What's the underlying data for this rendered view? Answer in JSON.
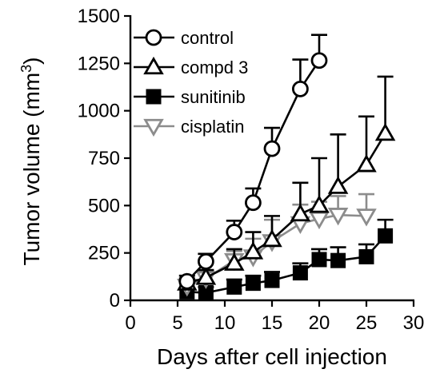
{
  "chart_data": {
    "type": "line",
    "xlabel": "Days after cell injection",
    "ylabel_main": "Tumor volume (mm",
    "ylabel_sup": "3",
    "ylabel_close": ")",
    "xlim": [
      0,
      30
    ],
    "ylim": [
      0,
      1500
    ],
    "xticks": [
      0,
      5,
      10,
      15,
      20,
      25,
      30
    ],
    "yticks": [
      0,
      250,
      500,
      750,
      1000,
      1250,
      1500
    ],
    "grid": false,
    "legend_position": "top-left",
    "series": [
      {
        "name": "control",
        "marker": "circle-open",
        "color": "#000000",
        "x": [
          6,
          8,
          11,
          13,
          15,
          18,
          20
        ],
        "y": [
          100,
          205,
          360,
          515,
          800,
          1115,
          1265
        ],
        "error_up": [
          30,
          40,
          60,
          75,
          110,
          155,
          135
        ]
      },
      {
        "name": "compd 3",
        "marker": "triangle-up-open",
        "color": "#000000",
        "x": [
          6,
          8,
          11,
          13,
          15,
          18,
          20,
          22,
          25,
          27
        ],
        "y": [
          90,
          120,
          195,
          255,
          320,
          455,
          500,
          600,
          715,
          880
        ],
        "error_up": [
          25,
          40,
          75,
          105,
          125,
          165,
          250,
          275,
          255,
          300
        ]
      },
      {
        "name": "sunitinib",
        "marker": "square-filled",
        "color": "#000000",
        "x": [
          6,
          8,
          11,
          13,
          15,
          18,
          20,
          22,
          25,
          27
        ],
        "y": [
          45,
          40,
          70,
          90,
          105,
          145,
          215,
          210,
          230,
          340
        ],
        "error_up": [
          20,
          30,
          40,
          40,
          45,
          50,
          55,
          70,
          65,
          85
        ]
      },
      {
        "name": "cisplatin",
        "marker": "triangle-down-open",
        "color": "#8c8c8c",
        "x": [
          6,
          8,
          11,
          13,
          15,
          18,
          20,
          22,
          25
        ],
        "y": [
          75,
          115,
          210,
          230,
          310,
          405,
          430,
          450,
          445
        ],
        "error_up": [
          25,
          40,
          50,
          95,
          115,
          100,
          90,
          100,
          115
        ]
      }
    ]
  }
}
